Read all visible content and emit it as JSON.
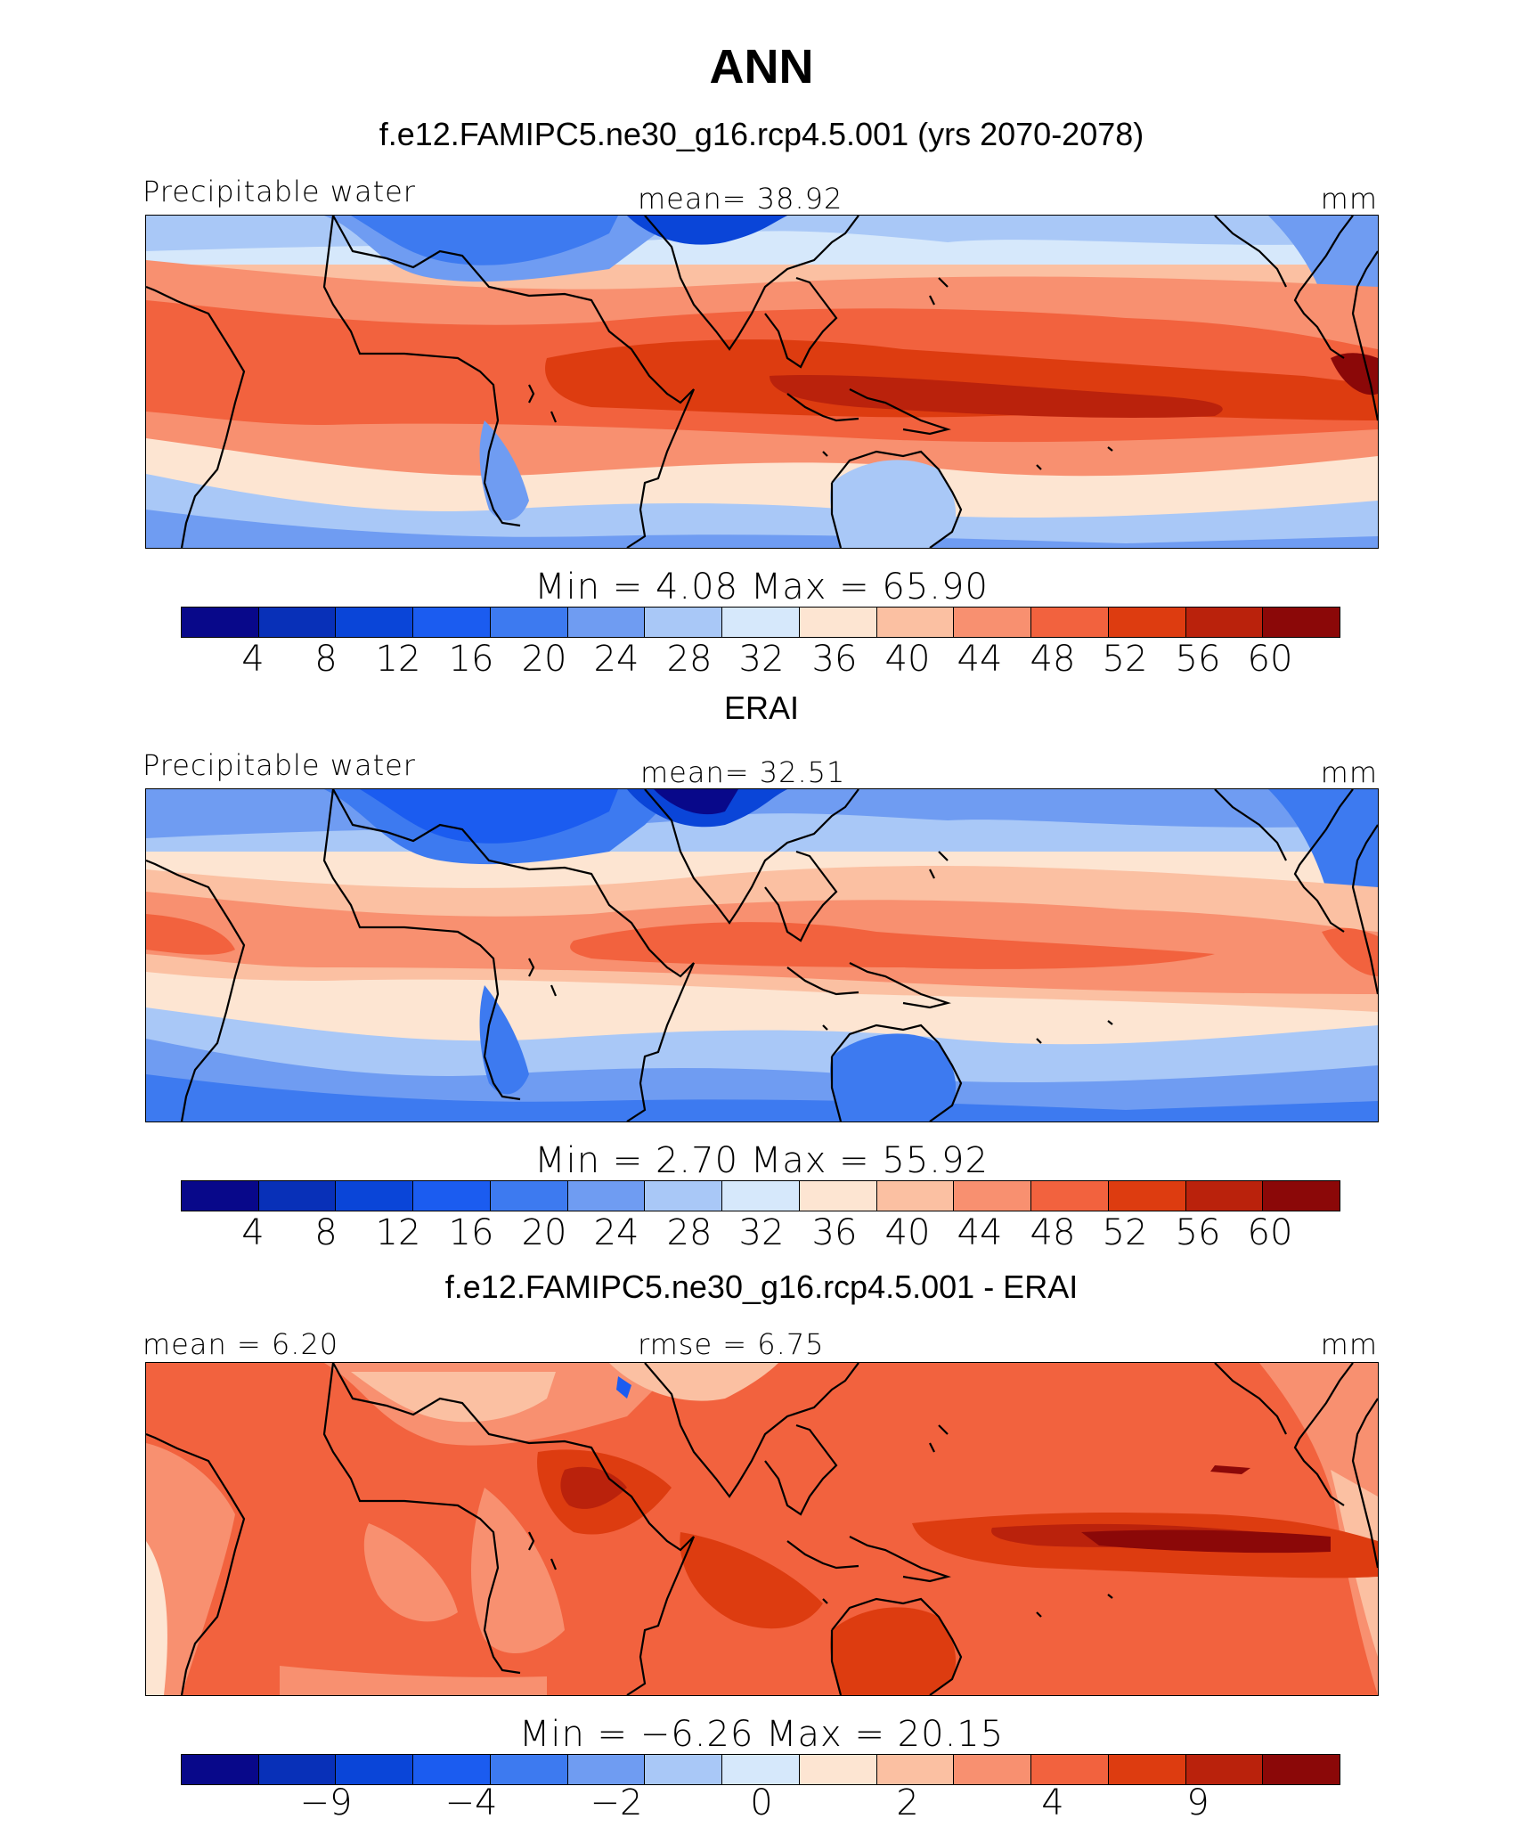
{
  "title": "ANN",
  "palette": [
    "#08088a",
    "#0830b8",
    "#0a45d8",
    "#1b5cf0",
    "#3d7af0",
    "#6f9cf2",
    "#a9c8f7",
    "#d6e8fb",
    "#fde5d2",
    "#fbc0a2",
    "#f89070",
    "#f2623e",
    "#dd3c10",
    "#ba220c",
    "#8b0808"
  ],
  "icons": {
    "continent_outline": "coastline-outline"
  },
  "panels": [
    {
      "subtitle": "f.e12.FAMIPC5.ne30_g16.rcp4.5.001 (yrs 2070-2078)",
      "left_label": "Precipitable water",
      "center_label": "mean=   38.92",
      "right_label": "mm",
      "minmax": "Min  =     4.08  Max  =    65.90",
      "ticks": [
        "4",
        "8",
        "12",
        "16",
        "20",
        "24",
        "28",
        "32",
        "36",
        "40",
        "44",
        "48",
        "52",
        "56",
        "60"
      ]
    },
    {
      "subtitle": "ERAI",
      "left_label": "Precipitable water",
      "center_label": "mean=   32.51",
      "right_label": "mm",
      "minmax": "Min  =     2.70  Max  =    55.92",
      "ticks": [
        "4",
        "8",
        "12",
        "16",
        "20",
        "24",
        "28",
        "32",
        "36",
        "40",
        "44",
        "48",
        "52",
        "56",
        "60"
      ]
    },
    {
      "subtitle": "f.e12.FAMIPC5.ne30_g16.rcp4.5.001 - ERAI",
      "left_label": "mean =    6.20",
      "center_label": "rmse =    6.75",
      "right_label": "mm",
      "minmax": "Min  =   −6.26  Max  =   20.15",
      "ticks": [
        "−9",
        "−4",
        "−2",
        "0",
        "2",
        "4",
        "9"
      ]
    }
  ]
}
